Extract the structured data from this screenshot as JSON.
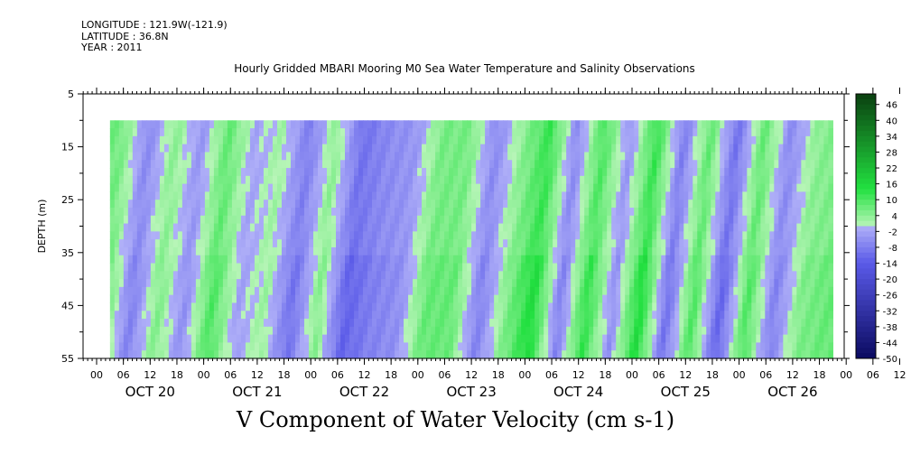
{
  "header": {
    "longitude": "LONGITUDE : 121.9W(-121.9)",
    "latitude": "LATITUDE : 36.8N",
    "year": "YEAR : 2011"
  },
  "chart_data": {
    "type": "heatmap",
    "title": "Hourly Gridded MBARI Mooring M0 Sea Water Temperature and Salinity Observations",
    "bottom_title": "V Component of Water Velocity (cm s-1)",
    "ylabel": "DEPTH (m)",
    "yticks": [
      "5",
      "15",
      "25",
      "35",
      "45",
      "55"
    ],
    "ylim": [
      55,
      5
    ],
    "data_depth_range": [
      10,
      55
    ],
    "hour_ticks": [
      "00",
      "06",
      "12",
      "18",
      "00",
      "06",
      "12",
      "18",
      "00",
      "06",
      "12",
      "18",
      "00",
      "06",
      "12",
      "18",
      "00",
      "06",
      "12",
      "18",
      "00",
      "06",
      "12",
      "18",
      "00",
      "06",
      "12",
      "18",
      "00",
      "06",
      "12",
      "18"
    ],
    "day_labels": [
      "OCT 20",
      "OCT 21",
      "OCT 22",
      "OCT 23",
      "OCT 24",
      "OCT 25",
      "OCT 26"
    ],
    "colorbar_labels": [
      "46",
      "40",
      "34",
      "28",
      "22",
      "16",
      "10",
      "4",
      "-2",
      "-8",
      "-14",
      "-20",
      "-26",
      "-32",
      "-38",
      "-44",
      "-50"
    ],
    "colorbar_range": [
      -50,
      50
    ],
    "colorbar_colors": {
      "positive_light": "#b8f5b8",
      "positive_mid": "#22e040",
      "positive_dark": "#0a4010",
      "negative_light": "#b0b0f8",
      "negative_mid": "#5a5ae8",
      "negative_dark": "#0a0a60"
    },
    "grid": false,
    "velocity_bands_note": "v_pattern_by_day_hour",
    "v_pattern": [
      {
        "t": 0,
        "v": 8
      },
      {
        "t": 6,
        "v": 6
      },
      {
        "t": 12,
        "v": -6
      },
      {
        "t": 18,
        "v": 4
      },
      {
        "t": 24,
        "v": -4
      },
      {
        "t": 30,
        "v": 8
      },
      {
        "t": 36,
        "v": -2
      },
      {
        "t": 42,
        "v": 2
      },
      {
        "t": 48,
        "v": -8
      },
      {
        "t": 54,
        "v": 4
      },
      {
        "t": 60,
        "v": -10
      },
      {
        "t": 66,
        "v": -6
      },
      {
        "t": 72,
        "v": -4
      },
      {
        "t": 78,
        "v": 6
      },
      {
        "t": 84,
        "v": 6
      },
      {
        "t": 90,
        "v": -6
      },
      {
        "t": 96,
        "v": 4
      },
      {
        "t": 102,
        "v": 12
      },
      {
        "t": 108,
        "v": -6
      },
      {
        "t": 114,
        "v": 10
      },
      {
        "t": 120,
        "v": -4
      },
      {
        "t": 126,
        "v": 12
      },
      {
        "t": 132,
        "v": -8
      },
      {
        "t": 138,
        "v": 8
      },
      {
        "t": 144,
        "v": -10
      },
      {
        "t": 150,
        "v": 8
      },
      {
        "t": 156,
        "v": -6
      },
      {
        "t": 162,
        "v": 4
      },
      {
        "t": 168,
        "v": 6
      }
    ]
  }
}
